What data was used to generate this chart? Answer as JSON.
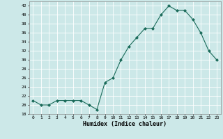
{
  "x": [
    0,
    1,
    2,
    3,
    4,
    5,
    6,
    7,
    8,
    9,
    10,
    11,
    12,
    13,
    14,
    15,
    16,
    17,
    18,
    19,
    20,
    21,
    22,
    23
  ],
  "y": [
    21,
    20,
    20,
    21,
    21,
    21,
    21,
    20,
    19,
    25,
    26,
    30,
    33,
    35,
    37,
    37,
    40,
    42,
    41,
    41,
    39,
    36,
    32,
    30
  ],
  "xlabel": "Humidex (Indice chaleur)",
  "ylabel": "",
  "ylim": [
    18,
    43
  ],
  "xlim": [
    -0.5,
    23.5
  ],
  "yticks": [
    18,
    20,
    22,
    24,
    26,
    28,
    30,
    32,
    34,
    36,
    38,
    40,
    42
  ],
  "xticks": [
    0,
    1,
    2,
    3,
    4,
    5,
    6,
    7,
    8,
    9,
    10,
    11,
    12,
    13,
    14,
    15,
    16,
    17,
    18,
    19,
    20,
    21,
    22,
    23
  ],
  "line_color": "#1a6b5a",
  "marker_color": "#1a6b5a",
  "bg_color": "#cce8e8",
  "grid_color": "#ffffff",
  "label_color": "#000000",
  "spine_color": "#888888"
}
